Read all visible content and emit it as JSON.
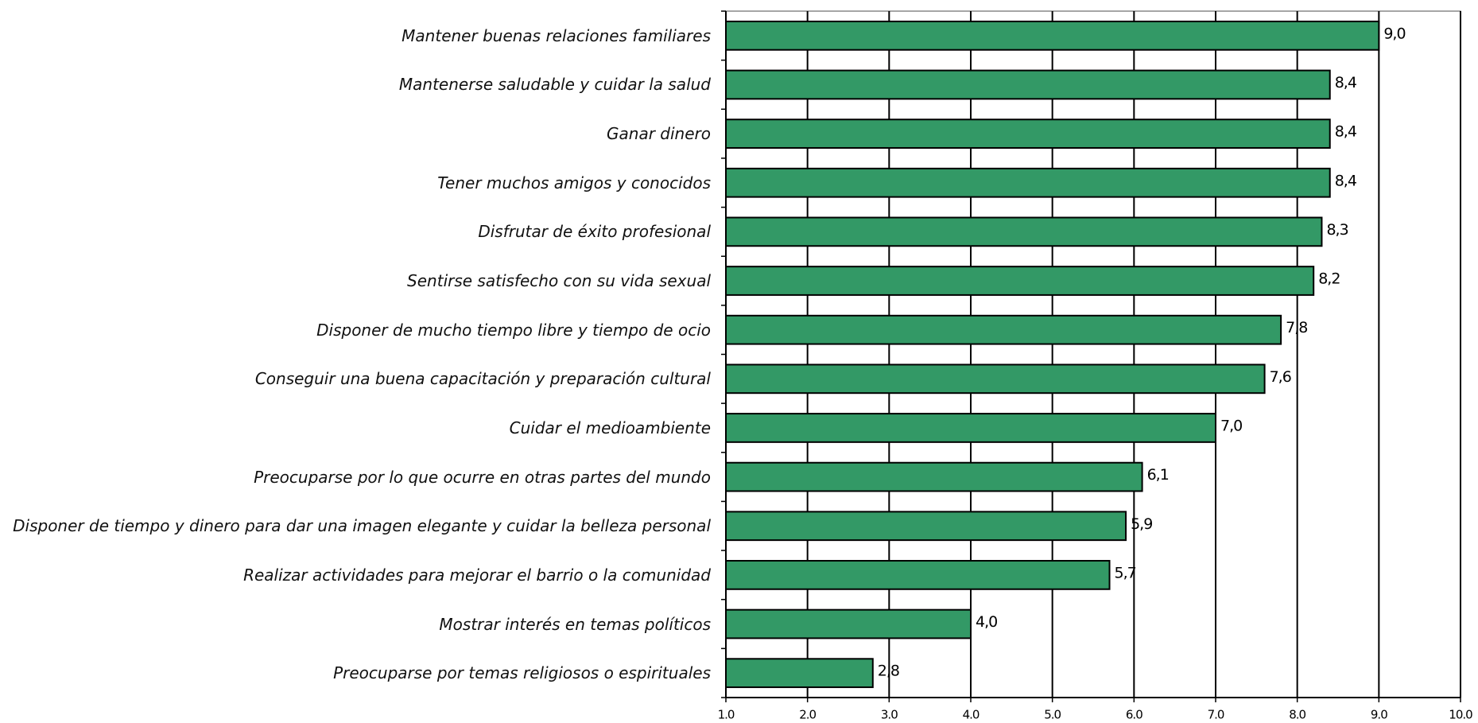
{
  "chart_data": {
    "type": "barh",
    "categories": [
      "Mantener buenas relaciones familiares",
      "Mantenerse saludable y cuidar la salud",
      "Ganar dinero",
      "Tener muchos amigos y conocidos",
      "Disfrutar de éxito profesional",
      "Sentirse satisfecho con su vida sexual",
      "Disponer de mucho tiempo libre y tiempo de ocio",
      "Conseguir una buena capacitación y preparación cultural",
      "Cuidar el medioambiente",
      "Preocuparse por lo que ocurre en otras partes del mundo",
      "Disponer de tiempo y dinero para dar una imagen elegante y cuidar la belleza personal",
      "Realizar actividades para mejorar el barrio o la comunidad",
      "Mostrar interés en temas políticos",
      "Preocuparse por temas religiosos o espirituales"
    ],
    "values": [
      9.0,
      8.4,
      8.4,
      8.4,
      8.3,
      8.2,
      7.8,
      7.6,
      7.0,
      6.1,
      5.9,
      5.7,
      4.0,
      2.8
    ],
    "value_labels": [
      "9,0",
      "8,4",
      "8,4",
      "8,4",
      "8,3",
      "8,2",
      "7,8",
      "7,6",
      "7,0",
      "6,1",
      "5,9",
      "5,7",
      "4,0",
      "2,8"
    ],
    "color": "#339966",
    "xlim": [
      1,
      10
    ],
    "xticks": [
      {
        "value": 1,
        "label": "1.0"
      },
      {
        "value": 2,
        "label": "2.0"
      },
      {
        "value": 3,
        "label": "3.0"
      },
      {
        "value": 4,
        "label": "4.0"
      },
      {
        "value": 5,
        "label": "5.0"
      },
      {
        "value": 6,
        "label": "6.0"
      },
      {
        "value": 7,
        "label": "7.0"
      },
      {
        "value": 8,
        "label": "8.0"
      },
      {
        "value": 9,
        "label": "9.0"
      },
      {
        "value": 10,
        "label": "10.0"
      }
    ],
    "grid": true
  }
}
